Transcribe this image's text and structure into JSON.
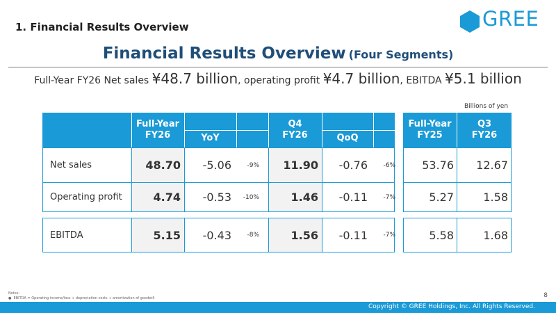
{
  "header": {
    "section_title": "1. Financial Results Overview",
    "logo_text": "GREE",
    "brand_color": "#1a9ad6"
  },
  "title": {
    "main": "Financial Results Overview",
    "sub": "(Four Segments)"
  },
  "headline": {
    "p1": "Full-Year FY26 Net sales ",
    "v1": "¥48.7 billion",
    "p2": ", operating profit ",
    "v2": "¥4.7 billion",
    "p3": ", EBITDA ",
    "v3": "¥5.1 billion"
  },
  "unit_note": "Billions of yen",
  "table": {
    "headers": {
      "fy26": "Full-Year\nFY26",
      "yoy": "YoY",
      "q4": "Q4\nFY26",
      "qoq": "QoQ",
      "fy25": "Full-Year\nFY25",
      "q3": "Q3\nFY26"
    },
    "rows": [
      {
        "label": "Net sales",
        "fy26": "48.70",
        "yoy": "-5.06",
        "yoy_pct": "-9%",
        "q4": "11.90",
        "qoq": "-0.76",
        "qoq_pct": "-6%",
        "fy25": "53.76",
        "q3": "12.67"
      },
      {
        "label": "Operating profit",
        "fy26": "4.74",
        "yoy": "-0.53",
        "yoy_pct": "-10%",
        "q4": "1.46",
        "qoq": "-0.11",
        "qoq_pct": "-7%",
        "fy25": "5.27",
        "q3": "1.58"
      },
      {
        "label": "EBITDA",
        "fy26": "5.15",
        "yoy": "-0.43",
        "yoy_pct": "-8%",
        "q4": "1.56",
        "qoq": "-0.11",
        "qoq_pct": "-7%",
        "fy25": "5.58",
        "q3": "1.68"
      }
    ]
  },
  "notes": {
    "title": "Notes:",
    "items": [
      "EBITDA = Operating income/loss + depreciation costs + amortization of goodwill"
    ]
  },
  "page_number": "8",
  "footer": {
    "copyright": "Copyright © GREE Holdings, Inc. All Rights Reserved."
  }
}
